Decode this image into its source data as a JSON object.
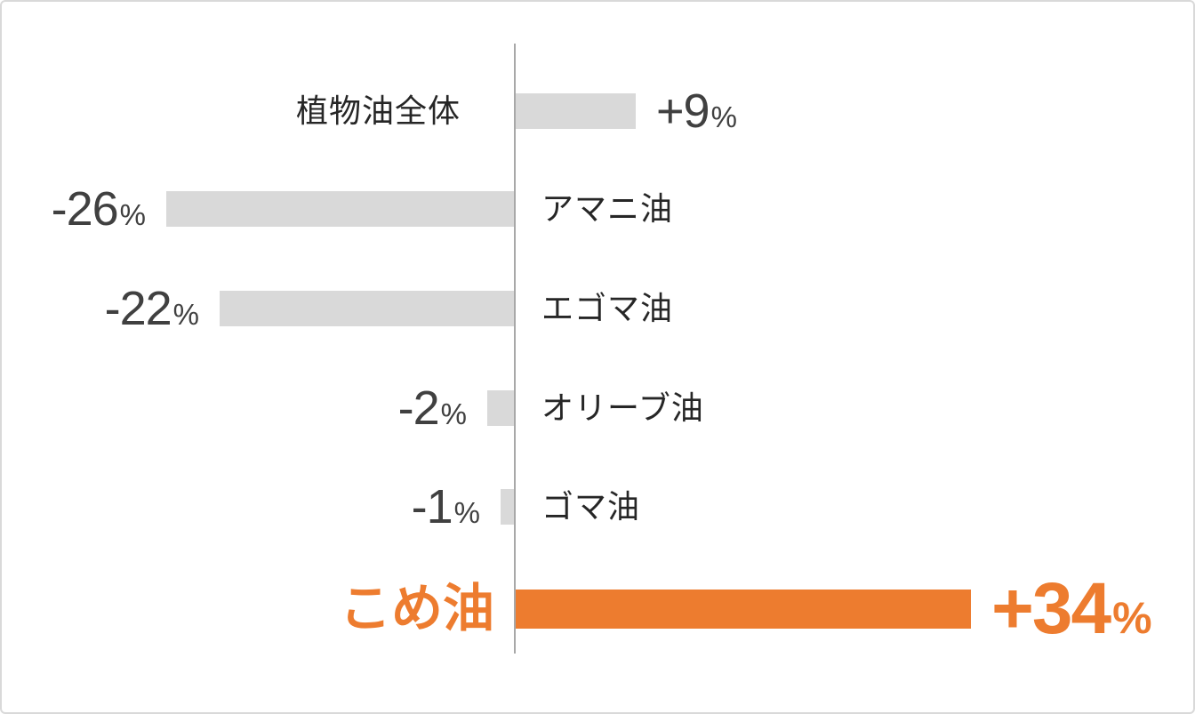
{
  "chart_data": {
    "type": "bar",
    "orientation": "horizontal-diverging",
    "title": "",
    "categories": [
      "植物油全体",
      "アマニ油",
      "エゴマ油",
      "オリーブ油",
      "ゴマ油",
      "こめ油"
    ],
    "values": [
      9,
      -26,
      -22,
      -2,
      -1,
      34
    ],
    "value_labels": [
      {
        "num": "+9",
        "pct": "%"
      },
      {
        "num": "-26",
        "pct": "%"
      },
      {
        "num": "-22",
        "pct": "%"
      },
      {
        "num": "-2",
        "pct": "%"
      },
      {
        "num": "-1",
        "pct": "%"
      },
      {
        "num": "+34",
        "pct": "%"
      }
    ],
    "highlight_index": 5,
    "axis": {
      "baseline_value": 0,
      "gridlines": false,
      "tick_labels": false
    },
    "legend": "none",
    "colors": {
      "bar_default": "#d9d9d9",
      "bar_highlight": "#ed7c2f",
      "axis_line": "#a8a8a8",
      "value_text": "#404040",
      "category_text": "#262626",
      "highlight_text": "#ed7c2f",
      "frame_border": "#d9d9d9",
      "background": "#ffffff"
    }
  }
}
